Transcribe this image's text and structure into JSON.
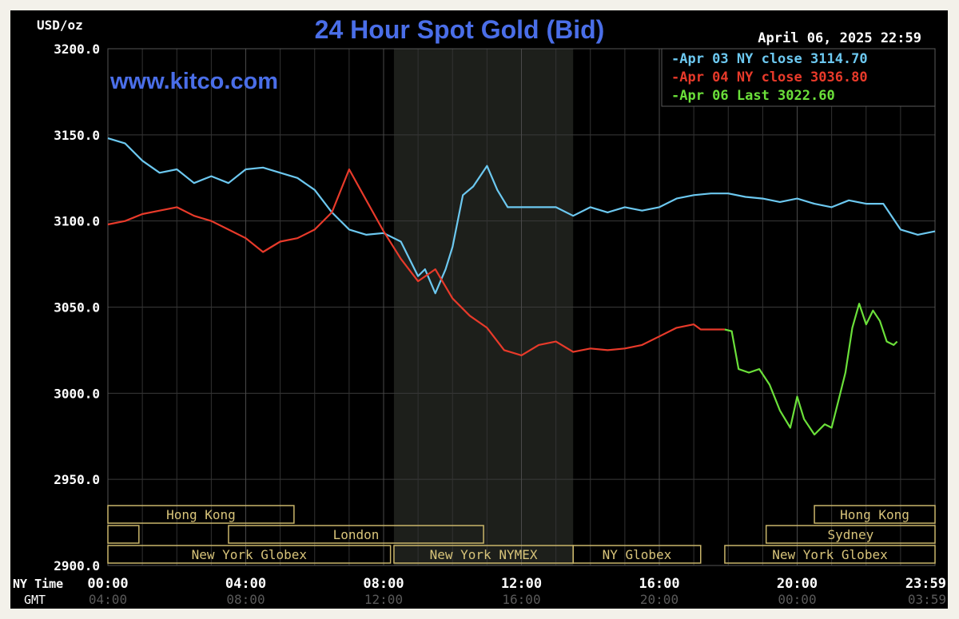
{
  "chart_data": {
    "type": "line",
    "title": "24 Hour Spot Gold (Bid)",
    "ylabel": "USD/oz",
    "timestamp": "April 06, 2025 22:59",
    "watermark": "www.kitco.com",
    "ylim": [
      2900,
      3200
    ],
    "y_ticks": [
      "3200.0",
      "3150.0",
      "3100.0",
      "3050.0",
      "3000.0",
      "2950.0",
      "2900.0"
    ],
    "x_row_labels": {
      "ny": "NY Time",
      "gmt": "GMT"
    },
    "x_ticks_ny": [
      "00:00",
      "04:00",
      "08:00",
      "12:00",
      "16:00",
      "20:00",
      "23:59"
    ],
    "x_ticks_gmt": [
      "04:00",
      "08:00",
      "12:00",
      "16:00",
      "20:00",
      "00:00",
      "03:59"
    ],
    "x_tick_hours": [
      0,
      4,
      8,
      12,
      16,
      20,
      24
    ],
    "xlim": [
      0,
      24
    ],
    "grid": true,
    "legend_position": "top-right",
    "shaded_period_hours": [
      8.3,
      13.5
    ],
    "sessions": [
      {
        "label": "Hong Kong",
        "row": 0,
        "start": 0,
        "end": 5.4
      },
      {
        "label": "",
        "row": 1,
        "start": 0,
        "end": 0.9
      },
      {
        "label": "London",
        "row": 1,
        "start": 3.5,
        "end": 10.9
      },
      {
        "label": "New York Globex",
        "row": 2,
        "start": 0,
        "end": 8.2
      },
      {
        "label": "New York NYMEX",
        "row": 2,
        "start": 8.3,
        "end": 13.5
      },
      {
        "label": "NY Globex",
        "row": 2,
        "start": 13.5,
        "end": 17.2
      },
      {
        "label": "Hong Kong",
        "row": 0,
        "start": 20.5,
        "end": 24
      },
      {
        "label": "Sydney",
        "row": 1,
        "start": 19.1,
        "end": 24
      },
      {
        "label": "New York Globex",
        "row": 2,
        "start": 17.9,
        "end": 24
      }
    ],
    "series": [
      {
        "name": "Apr 03 NY close 3114.70",
        "color": "#6cc8f0",
        "x": [
          0,
          0.5,
          1,
          1.5,
          2,
          2.5,
          3,
          3.5,
          4,
          4.5,
          5,
          5.5,
          6,
          6.5,
          7,
          7.5,
          8,
          8.5,
          9,
          9.2,
          9.5,
          9.8,
          10,
          10.3,
          10.6,
          11,
          11.3,
          11.6,
          12,
          12.5,
          13,
          13.5,
          14,
          14.5,
          15,
          15.5,
          16,
          16.5,
          17,
          17.5,
          18,
          18.5,
          19,
          19.5,
          20,
          20.5,
          21,
          21.5,
          22,
          22.5,
          23,
          23.5,
          24
        ],
        "y": [
          3148,
          3145,
          3135,
          3128,
          3130,
          3122,
          3126,
          3122,
          3130,
          3131,
          3128,
          3125,
          3118,
          3105,
          3095,
          3092,
          3093,
          3088,
          3068,
          3072,
          3058,
          3072,
          3085,
          3115,
          3120,
          3132,
          3118,
          3108,
          3108,
          3108,
          3108,
          3103,
          3108,
          3105,
          3108,
          3106,
          3108,
          3113,
          3115,
          3116,
          3116,
          3114,
          3113,
          3111,
          3113,
          3110,
          3108,
          3112,
          3110,
          3110,
          3095,
          3092,
          3094
        ]
      },
      {
        "name": "Apr 04 NY close 3036.80",
        "color": "#e83a2a",
        "x": [
          0,
          0.5,
          1,
          1.5,
          2,
          2.5,
          3,
          3.5,
          4,
          4.5,
          5,
          5.5,
          6,
          6.5,
          7,
          7.5,
          8,
          8.5,
          9,
          9.5,
          10,
          10.5,
          11,
          11.5,
          12,
          12.5,
          13,
          13.5,
          14,
          14.5,
          15,
          15.5,
          16,
          16.5,
          17,
          17.2,
          17.9
        ],
        "y": [
          3098,
          3100,
          3104,
          3106,
          3108,
          3103,
          3100,
          3095,
          3090,
          3082,
          3088,
          3090,
          3095,
          3105,
          3130,
          3112,
          3094,
          3078,
          3065,
          3072,
          3055,
          3045,
          3038,
          3025,
          3022,
          3028,
          3030,
          3024,
          3026,
          3025,
          3026,
          3028,
          3033,
          3038,
          3040,
          3037,
          3037
        ]
      },
      {
        "name": "Apr 06 Last 3022.60",
        "color": "#6be03a",
        "x": [
          17.9,
          18.1,
          18.3,
          18.6,
          18.9,
          19.2,
          19.5,
          19.8,
          20.0,
          20.2,
          20.5,
          20.8,
          21.0,
          21.2,
          21.4,
          21.6,
          21.8,
          22.0,
          22.2,
          22.4,
          22.6,
          22.8,
          22.9
        ],
        "y": [
          3037,
          3036,
          3014,
          3012,
          3014,
          3005,
          2990,
          2980,
          2998,
          2985,
          2976,
          2982,
          2980,
          2996,
          3012,
          3038,
          3052,
          3040,
          3048,
          3042,
          3030,
          3028,
          3030
        ]
      }
    ]
  }
}
